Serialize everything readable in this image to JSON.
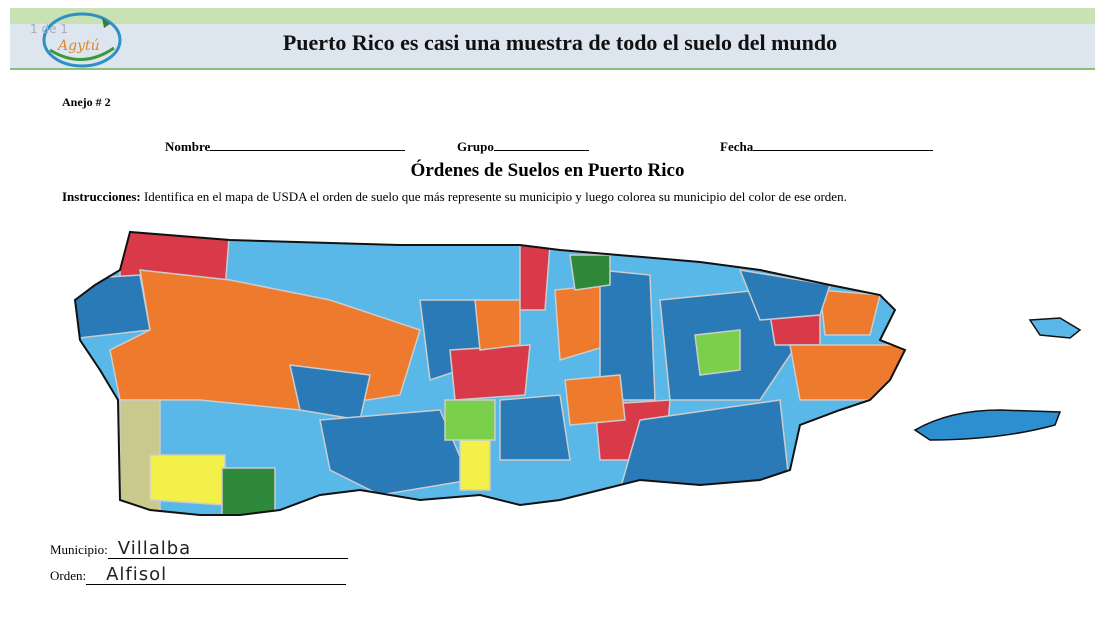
{
  "header": {
    "page_indicator": "1 de 1",
    "logo_text": "Agytú",
    "title": "Puerto Rico es casi una muestra de todo el suelo del mundo"
  },
  "document": {
    "annex": "Anejo # 2",
    "fields": {
      "name": "Nombre",
      "group": "Grupo",
      "date": "Fecha"
    },
    "heading": "Órdenes de Suelos en Puerto Rico",
    "instructions_label": "Instrucciones:",
    "instructions_text": "Identifica en el mapa de USDA el orden de suelo que más represente su municipio y luego colorea su municipio del color de ese orden.",
    "answers": {
      "municipio_label": "Municipio:",
      "municipio_value": "Villalba",
      "orden_label": "Orden:",
      "orden_value": "Alfisol"
    }
  }
}
